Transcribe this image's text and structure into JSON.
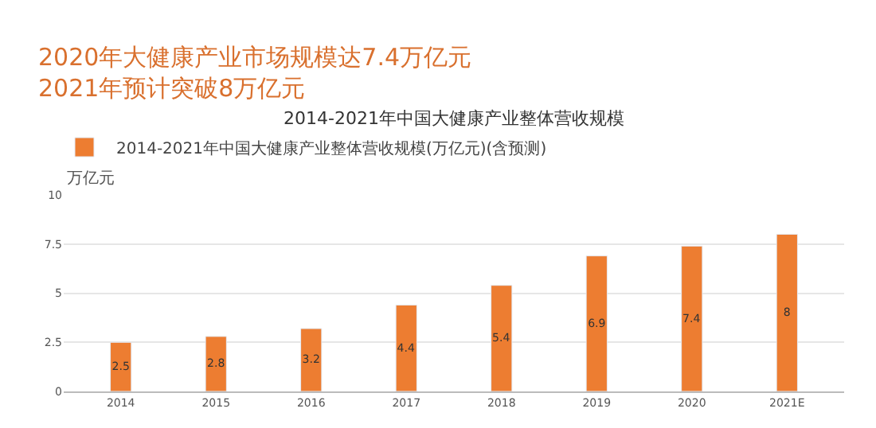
{
  "chart_data": {
    "type": "bar",
    "title": "2020年大健康产业市场规模达7.4万亿元\n2021年预计突破8万亿元",
    "subtitle": "2014-2021年中国大健康产业整体营收规模",
    "ylabel": "万亿元",
    "categories": [
      "2014",
      "2015",
      "2016",
      "2017",
      "2018",
      "2019",
      "2020",
      "2021E"
    ],
    "series": [
      {
        "name": "2014-2021年中国大健康产业整体营收规模(万亿元)(含预测)",
        "color": "#ed7d31",
        "values": [
          2.5,
          2.8,
          3.2,
          4.4,
          5.4,
          6.9,
          7.4,
          8
        ]
      }
    ],
    "ylim": [
      0,
      10
    ],
    "yticks": [
      0,
      2.5,
      5,
      7.5,
      10
    ],
    "grid": "y",
    "legend": "top left",
    "data_labels": true
  }
}
